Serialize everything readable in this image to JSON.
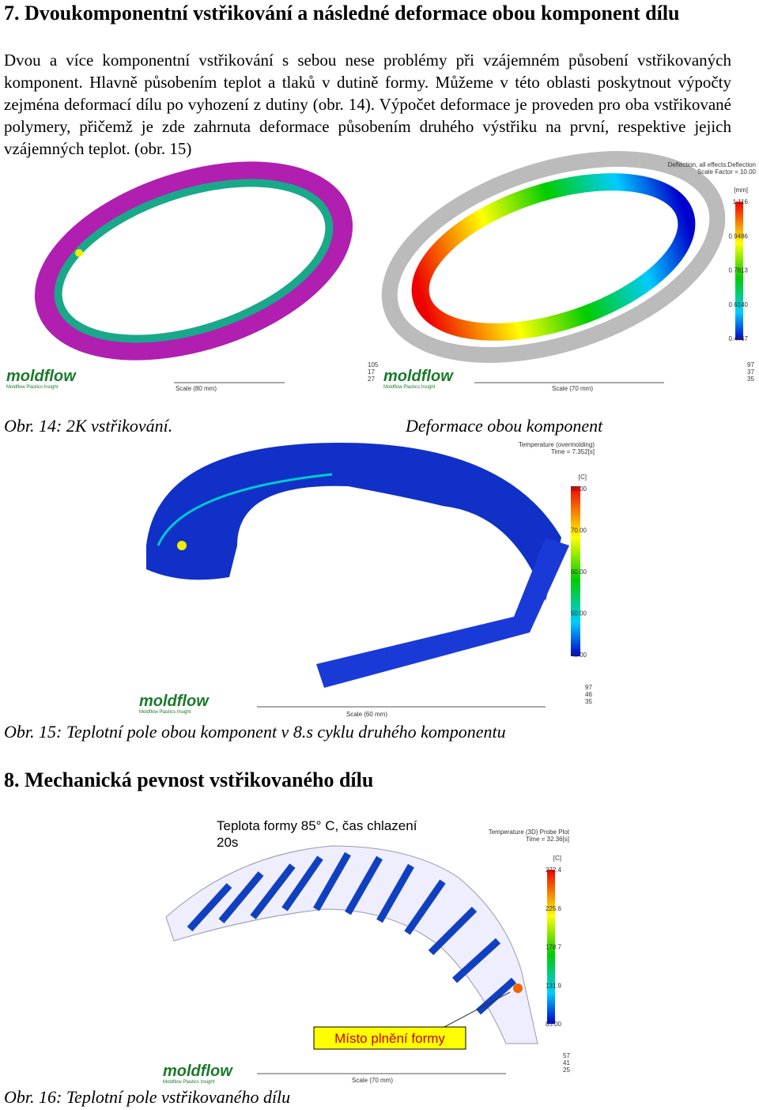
{
  "section7": {
    "heading": "7. Dvoukomponentní vstřikování a následné deformace obou komponent dílu",
    "paragraph": "Dvou a více komponentní vstřikování s sebou nese problémy při vzájemném působení vstřikovaných komponent. Hlavně působením teplot a tlaků v dutině formy. Můžeme v této oblasti poskytnout výpočty zejména deformací dílu po vyhození z dutiny (obr. 14). Výpočet deformace je proveden pro oba vstřikované polymery, přičemž je zde zahrnuta deformace působením druhého výstřiku na první, respektive jejich vzájemných teplot. (obr. 15)"
  },
  "figure14": {
    "left": {
      "logo": "moldflow",
      "logo_sub": "Moldflow Plastics Insight",
      "scale": "Scale (80 mm)",
      "axes": [
        "105",
        "17",
        "27"
      ]
    },
    "right": {
      "title": "Deflection, all effects:Deflection",
      "subtitle": "Scale Factor = 10.00",
      "unit": "[mm]",
      "ticks": [
        "1.116",
        "0.9486",
        "0.7813",
        "0.6140",
        "0.4467"
      ],
      "logo": "moldflow",
      "logo_sub": "Moldflow Plastics Insight",
      "scale": "Scale (70 mm)",
      "axes": [
        "97",
        "37",
        "35"
      ]
    },
    "caption": "Obr. 14: 2K vstřikování.",
    "caption_right": "Deformace obou komponent"
  },
  "figure15": {
    "title": "Temperature (overmolding)",
    "subtitle": "Time = 7.352[s]",
    "unit": "[C]",
    "ticks": [
      "80.00",
      "70.00",
      "60.00",
      "50.00",
      "40.00"
    ],
    "logo": "moldflow",
    "logo_sub": "Moldflow Plastics Insight",
    "scale": "Scale (60 mm)",
    "axes": [
      "97",
      "46",
      "35"
    ],
    "caption": "Obr. 15: Teplotní pole obou komponent v 8.s cyklu druhého komponentu"
  },
  "section8": {
    "heading": "8. Mechanická pevnost vstřikovaného dílu"
  },
  "figure16": {
    "note": "Teplota formy 85° C, čas chlazení",
    "note2": "20s",
    "title": "Temperature (3D) Probe Plot",
    "subtitle": "Time = 32.36[s]",
    "unit": "[C]",
    "ticks": [
      "272.4",
      "225.6",
      "178.7",
      "131.9",
      "85.00"
    ],
    "callout": "Místo plnění formy",
    "logo": "moldflow",
    "logo_sub": "Moldflow Plastics Insight",
    "scale": "Scale (70 mm)",
    "axes": [
      "57",
      "41",
      "25"
    ],
    "caption": "Obr. 16: Teplotní pole vstřikovaného dílu"
  }
}
